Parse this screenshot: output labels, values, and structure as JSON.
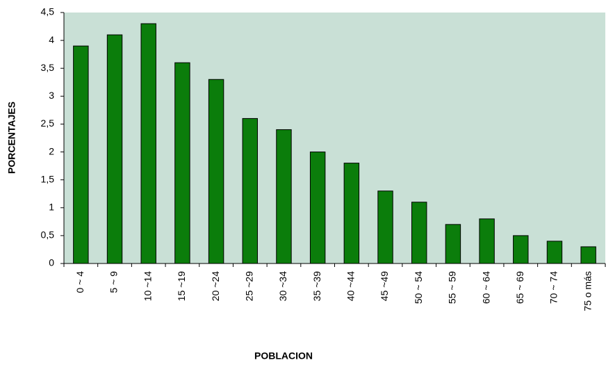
{
  "chart_data": {
    "type": "bar",
    "categories": [
      "0 ~ 4",
      "5 ~ 9",
      "10 ~14",
      "15 ~19",
      "20 ~24",
      "25 ~29",
      "30 ~34",
      "35 ~39",
      "40 ~44",
      "45 ~49",
      "50 ~ 54",
      "55 ~ 59",
      "60 ~ 64",
      "65 ~ 69",
      "70 ~ 74",
      "75 o más"
    ],
    "values": [
      3.9,
      4.1,
      4.3,
      3.6,
      3.3,
      2.6,
      2.4,
      2.0,
      1.8,
      1.3,
      1.1,
      0.7,
      0.8,
      0.5,
      0.4,
      0.3
    ],
    "color": "#0b7d0b",
    "background": "#c9e0d6",
    "ylim": [
      0,
      4.5
    ],
    "yticks": [
      0,
      {
        "value": 0.5,
        "label": "0,5"
      },
      1,
      {
        "value": 1.5,
        "label": "1,5"
      },
      2,
      {
        "value": 2.5,
        "label": "2,5"
      },
      3,
      {
        "value": 3.5,
        "label": "3,5"
      },
      4,
      {
        "value": 4.5,
        "label": "4,5"
      }
    ],
    "grid": false,
    "ylabel": "PORCENTAJES",
    "xlabel": "POBLACION"
  }
}
